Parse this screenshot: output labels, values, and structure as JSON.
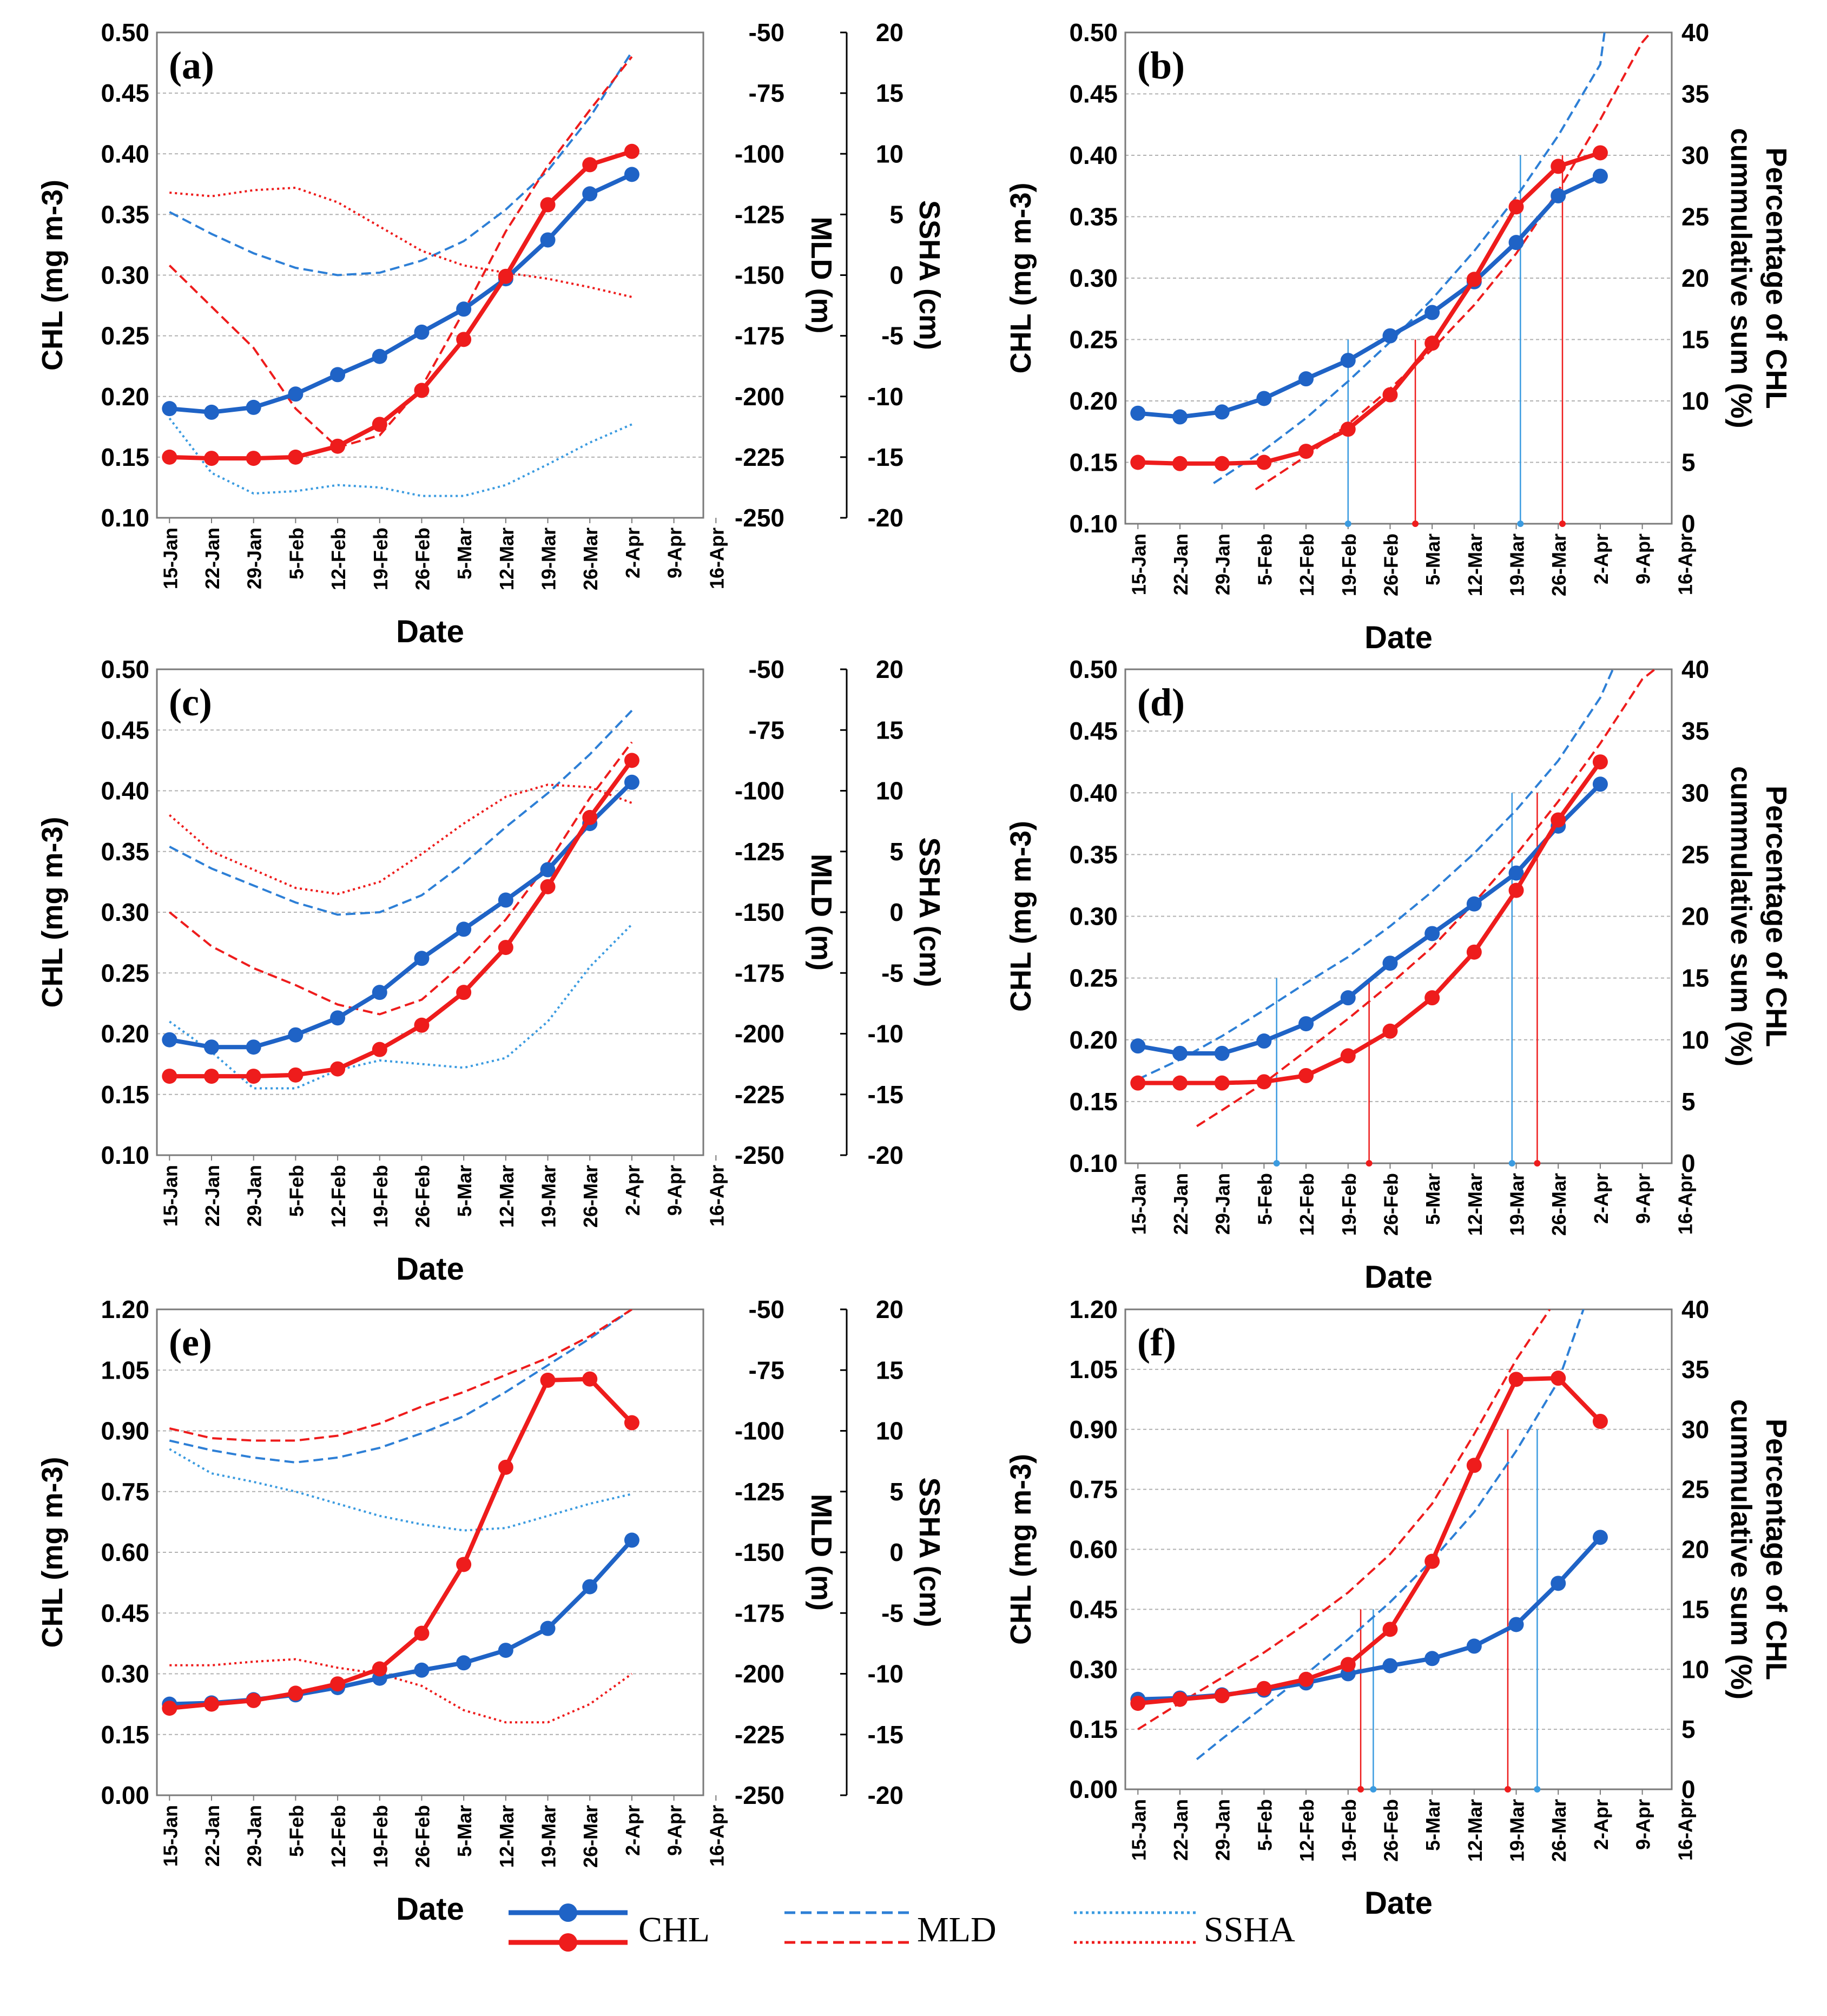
{
  "colors": {
    "blue": "#1f63c6",
    "red": "#ee1c1c",
    "dashblue": "#2d7fd6",
    "dotblue": "#3b9be0",
    "grid": "#b0b0b0"
  },
  "dates": [
    "15-Jan",
    "22-Jan",
    "29-Jan",
    "5-Feb",
    "12-Feb",
    "19-Feb",
    "26-Feb",
    "5-Mar",
    "12-Mar",
    "19-Mar",
    "26-Mar",
    "2-Apr",
    "9-Apr",
    "16-Apr"
  ],
  "xlabel": "Date",
  "legend": {
    "chl": "CHL",
    "mld": "MLD",
    "ssha": "SSHA"
  },
  "chart_data": [
    {
      "panel": "(a)",
      "type": "line",
      "kind": "time",
      "ylabel": "CHL (mg m-3)",
      "ylim": [
        0.1,
        0.5
      ],
      "yticks": [
        0.1,
        0.15,
        0.2,
        0.25,
        0.3,
        0.35,
        0.4,
        0.45,
        0.5
      ],
      "mld_label": "MLD (m)",
      "mld_ticks": [
        -250,
        -225,
        -200,
        -175,
        -150,
        -125,
        -100,
        -75,
        -50
      ],
      "mld_lim": [
        -250,
        -50
      ],
      "ssha_label": "SSHA (cm)",
      "ssha_ticks": [
        -20,
        -15,
        -10,
        -5,
        0,
        5,
        10,
        15,
        20
      ],
      "ssha_lim": [
        -20,
        20
      ],
      "series": [
        {
          "name": "CHL blue",
          "color": "blue",
          "values": [
            0.19,
            0.187,
            0.191,
            0.202,
            0.218,
            0.233,
            0.253,
            0.272,
            0.297,
            0.329,
            0.367,
            0.383
          ]
        },
        {
          "name": "CHL red",
          "color": "red",
          "values": [
            0.15,
            0.149,
            0.149,
            0.15,
            0.159,
            0.177,
            0.205,
            0.247,
            0.299,
            0.358,
            0.391,
            0.402
          ]
        },
        {
          "name": "MLD blue",
          "color": "dashblue",
          "style": "dash",
          "axis": "mld",
          "values": [
            -124,
            -133,
            -141,
            -147,
            -150,
            -149,
            -144,
            -136,
            -123,
            -107,
            -85,
            -58
          ]
        },
        {
          "name": "MLD red",
          "color": "red",
          "style": "dash",
          "axis": "mld",
          "values": [
            -146,
            -163,
            -180,
            -205,
            -221,
            -216,
            -196,
            -165,
            -132,
            -105,
            -82,
            -60
          ]
        },
        {
          "name": "SSHA blue",
          "color": "dotblue",
          "style": "dot",
          "axis": "ssha",
          "values": [
            -11.8,
            -16.3,
            -18.0,
            -17.8,
            -17.3,
            -17.5,
            -18.2,
            -18.2,
            -17.3,
            -15.6,
            -13.8,
            -12.3
          ]
        },
        {
          "name": "SSHA red",
          "color": "red",
          "style": "dot",
          "axis": "ssha",
          "values": [
            6.8,
            6.5,
            7.0,
            7.2,
            6.0,
            4.0,
            2.0,
            0.8,
            0.2,
            -0.3,
            -1.0,
            -1.8
          ]
        }
      ]
    },
    {
      "panel": "(b)",
      "type": "line",
      "kind": "cum",
      "ylabel": "CHL (mg m-3)",
      "ylim": [
        0.1,
        0.5
      ],
      "yticks": [
        0.1,
        0.15,
        0.2,
        0.25,
        0.3,
        0.35,
        0.4,
        0.45,
        0.5
      ],
      "pct_label1": "Percentage of CHL",
      "pct_label2": "cummulative sum (%)",
      "pct_ticks": [
        0,
        5,
        10,
        15,
        20,
        25,
        30,
        35,
        40
      ],
      "pct_lim": [
        0,
        40
      ],
      "series": [
        {
          "name": "CHL blue",
          "color": "blue",
          "values": [
            0.19,
            0.187,
            0.191,
            0.202,
            0.218,
            0.233,
            0.253,
            0.272,
            0.297,
            0.329,
            0.367,
            0.383
          ]
        },
        {
          "name": "CHL red",
          "color": "red",
          "values": [
            0.15,
            0.149,
            0.149,
            0.15,
            0.159,
            0.177,
            0.205,
            0.247,
            0.299,
            0.358,
            0.391,
            0.402
          ]
        },
        {
          "name": "Cum blue",
          "color": "dashblue",
          "style": "dash",
          "axis": "pct",
          "x": [
            1.8,
            3,
            4,
            5,
            6,
            7,
            8,
            9,
            10,
            11,
            11.1
          ],
          "values": [
            3.3,
            6.0,
            8.6,
            11.6,
            14.8,
            18.3,
            22.2,
            26.6,
            31.6,
            37.4,
            40
          ]
        },
        {
          "name": "Cum red",
          "color": "red",
          "style": "dash",
          "axis": "pct",
          "x": [
            2.8,
            4,
            5,
            6,
            7,
            8,
            9,
            10,
            11,
            12,
            12.2
          ],
          "values": [
            2.8,
            5.5,
            8.1,
            11.0,
            14.2,
            17.8,
            22.0,
            27.1,
            32.9,
            39.2,
            40
          ]
        }
      ],
      "markers": [
        {
          "color": "dotblue",
          "x": 5,
          "pct": 15
        },
        {
          "color": "red",
          "x": 6.6,
          "pct": 15
        },
        {
          "color": "dotblue",
          "x": 9.1,
          "pct": 30
        },
        {
          "color": "red",
          "x": 10.1,
          "pct": 30
        }
      ]
    },
    {
      "panel": "(c)",
      "type": "line",
      "kind": "time",
      "ylabel": "CHL (mg m-3)",
      "ylim": [
        0.1,
        0.5
      ],
      "yticks": [
        0.1,
        0.15,
        0.2,
        0.25,
        0.3,
        0.35,
        0.4,
        0.45,
        0.5
      ],
      "mld_label": "MLD (m)",
      "mld_ticks": [
        -250,
        -225,
        -200,
        -175,
        -150,
        -125,
        -100,
        -75,
        -50
      ],
      "mld_lim": [
        -250,
        -50
      ],
      "ssha_label": "SSHA (cm)",
      "ssha_ticks": [
        -20,
        -15,
        -10,
        -5,
        0,
        5,
        10,
        15,
        20
      ],
      "ssha_lim": [
        -20,
        20
      ],
      "series": [
        {
          "name": "CHL blue",
          "color": "blue",
          "values": [
            0.195,
            0.189,
            0.189,
            0.199,
            0.213,
            0.234,
            0.262,
            0.286,
            0.31,
            0.335,
            0.373,
            0.407
          ]
        },
        {
          "name": "CHL red",
          "color": "red",
          "values": [
            0.165,
            0.165,
            0.165,
            0.166,
            0.171,
            0.187,
            0.207,
            0.234,
            0.271,
            0.321,
            0.378,
            0.425
          ]
        },
        {
          "name": "MLD blue",
          "color": "dashblue",
          "style": "dash",
          "axis": "mld",
          "values": [
            -123,
            -132,
            -139,
            -146,
            -151,
            -150,
            -143,
            -130,
            -115,
            -101,
            -85,
            -67
          ]
        },
        {
          "name": "MLD red",
          "color": "red",
          "style": "dash",
          "axis": "mld",
          "values": [
            -150,
            -164,
            -173,
            -180,
            -188,
            -192,
            -186,
            -171,
            -153,
            -130,
            -103,
            -80
          ]
        },
        {
          "name": "SSHA blue",
          "color": "dotblue",
          "style": "dot",
          "axis": "ssha",
          "values": [
            -9.0,
            -11.5,
            -14.5,
            -14.5,
            -13.0,
            -12.2,
            -12.5,
            -12.8,
            -12.0,
            -9.0,
            -4.5,
            -1.0
          ]
        },
        {
          "name": "SSHA red",
          "color": "red",
          "style": "dot",
          "axis": "ssha",
          "values": [
            8.0,
            5.0,
            3.5,
            2.0,
            1.5,
            2.5,
            4.8,
            7.3,
            9.5,
            10.5,
            10.3,
            9.0
          ]
        }
      ]
    },
    {
      "panel": "(d)",
      "type": "line",
      "kind": "cum",
      "ylabel": "CHL (mg m-3)",
      "ylim": [
        0.1,
        0.5
      ],
      "yticks": [
        0.1,
        0.15,
        0.2,
        0.25,
        0.3,
        0.35,
        0.4,
        0.45,
        0.5
      ],
      "pct_label1": "Percentage of CHL",
      "pct_label2": "cummulative sum (%)",
      "pct_ticks": [
        0,
        5,
        10,
        15,
        20,
        25,
        30,
        35,
        40
      ],
      "pct_lim": [
        0,
        40
      ],
      "series": [
        {
          "name": "CHL blue",
          "color": "blue",
          "values": [
            0.195,
            0.189,
            0.189,
            0.199,
            0.213,
            0.234,
            0.262,
            0.286,
            0.31,
            0.335,
            0.373,
            0.407
          ]
        },
        {
          "name": "CHL red",
          "color": "red",
          "values": [
            0.165,
            0.165,
            0.165,
            0.166,
            0.171,
            0.187,
            0.207,
            0.234,
            0.271,
            0.321,
            0.378,
            0.425
          ]
        },
        {
          "name": "Cum blue",
          "color": "dashblue",
          "style": "dash",
          "axis": "pct",
          "x": [
            0,
            1,
            2,
            3,
            4,
            5,
            6,
            7,
            8,
            9,
            10,
            11,
            11.3
          ],
          "values": [
            6.8,
            8.4,
            10.3,
            12.4,
            14.6,
            16.7,
            19.2,
            22.0,
            25.1,
            28.6,
            32.6,
            37.7,
            40
          ]
        },
        {
          "name": "Cum red",
          "color": "red",
          "style": "dash",
          "axis": "pct",
          "x": [
            1.4,
            2,
            3,
            4,
            5,
            6,
            7,
            8,
            9,
            10,
            11,
            12,
            12.3
          ],
          "values": [
            3.0,
            4.3,
            6.5,
            9.1,
            11.7,
            14.5,
            17.5,
            21.1,
            25.0,
            29.3,
            34.0,
            39.2,
            40
          ]
        }
      ],
      "markers": [
        {
          "color": "dotblue",
          "x": 3.3,
          "pct": 15
        },
        {
          "color": "red",
          "x": 5.5,
          "pct": 15
        },
        {
          "color": "dotblue",
          "x": 8.9,
          "pct": 30
        },
        {
          "color": "red",
          "x": 9.5,
          "pct": 30
        }
      ]
    },
    {
      "panel": "(e)",
      "type": "line",
      "kind": "time",
      "ylabel": "CHL (mg m-3)",
      "ylim": [
        0.0,
        1.2
      ],
      "yticks": [
        0.0,
        0.15,
        0.3,
        0.45,
        0.6,
        0.75,
        0.9,
        1.05,
        1.2
      ],
      "mld_label": "MLD (m)",
      "mld_ticks": [
        -250,
        -225,
        -200,
        -175,
        -150,
        -125,
        -100,
        -75,
        -50
      ],
      "mld_lim": [
        -250,
        -50
      ],
      "ssha_label": "SSHA (cm)",
      "ssha_ticks": [
        -20,
        -15,
        -10,
        -5,
        0,
        5,
        10,
        15,
        20
      ],
      "ssha_lim": [
        -20,
        20
      ],
      "series": [
        {
          "name": "CHL blue",
          "color": "blue",
          "values": [
            0.225,
            0.228,
            0.236,
            0.248,
            0.266,
            0.289,
            0.309,
            0.327,
            0.358,
            0.412,
            0.515,
            0.63
          ]
        },
        {
          "name": "CHL red",
          "color": "red",
          "values": [
            0.215,
            0.225,
            0.234,
            0.252,
            0.275,
            0.312,
            0.4,
            0.57,
            0.81,
            1.025,
            1.028,
            0.92
          ]
        },
        {
          "name": "MLD blue",
          "color": "dashblue",
          "style": "dash",
          "axis": "mld",
          "values": [
            -104,
            -108,
            -111,
            -113,
            -111,
            -107,
            -101,
            -94,
            -84,
            -73,
            -62,
            -50
          ]
        },
        {
          "name": "MLD red",
          "color": "red",
          "style": "dash",
          "axis": "mld",
          "values": [
            -99,
            -103,
            -104,
            -104,
            -102,
            -97,
            -90,
            -84,
            -77,
            -70,
            -61,
            -50
          ]
        },
        {
          "name": "SSHA blue",
          "color": "dotblue",
          "style": "dot",
          "axis": "ssha",
          "values": [
            8.5,
            6.5,
            5.8,
            5.0,
            4.0,
            3.0,
            2.3,
            1.8,
            2.0,
            3.0,
            4.0,
            4.8
          ]
        },
        {
          "name": "SSHA red",
          "color": "red",
          "style": "dot",
          "axis": "ssha",
          "values": [
            -9.3,
            -9.3,
            -9.0,
            -8.8,
            -9.5,
            -10.0,
            -11.0,
            -13.0,
            -14.0,
            -14.0,
            -12.5,
            -10.0
          ]
        }
      ]
    },
    {
      "panel": "(f)",
      "type": "line",
      "kind": "cum",
      "ylabel": "CHL (mg m-3)",
      "ylim": [
        0.0,
        1.2
      ],
      "yticks": [
        0.0,
        0.15,
        0.3,
        0.45,
        0.6,
        0.75,
        0.9,
        1.05,
        1.2
      ],
      "pct_label1": "Percentage of CHL",
      "pct_label2": "cummulative sum (%)",
      "pct_ticks": [
        0,
        5,
        10,
        15,
        20,
        25,
        30,
        35,
        40
      ],
      "pct_lim": [
        0,
        40
      ],
      "series": [
        {
          "name": "CHL blue",
          "color": "blue",
          "values": [
            0.225,
            0.228,
            0.236,
            0.248,
            0.266,
            0.289,
            0.309,
            0.327,
            0.358,
            0.412,
            0.515,
            0.63
          ]
        },
        {
          "name": "CHL red",
          "color": "red",
          "values": [
            0.215,
            0.225,
            0.234,
            0.252,
            0.275,
            0.312,
            0.4,
            0.57,
            0.81,
            1.025,
            1.028,
            0.92
          ]
        },
        {
          "name": "Cum blue",
          "color": "dashblue",
          "style": "dash",
          "axis": "pct",
          "x": [
            1.4,
            2,
            3,
            4,
            5,
            6,
            7,
            8,
            9,
            10,
            10.6
          ],
          "values": [
            2.5,
            4.2,
            6.9,
            9.6,
            12.5,
            15.6,
            19.1,
            23.1,
            28.2,
            34.0,
            40
          ]
        },
        {
          "name": "Cum red",
          "color": "red",
          "style": "dash",
          "axis": "pct",
          "x": [
            0,
            1,
            2,
            3,
            4,
            5,
            6,
            7,
            8,
            9,
            9.8
          ],
          "values": [
            5.0,
            7.2,
            9.3,
            11.4,
            13.8,
            16.4,
            19.6,
            23.8,
            29.6,
            35.8,
            40
          ]
        }
      ],
      "markers": [
        {
          "color": "red",
          "x": 5.3,
          "pct": 15
        },
        {
          "color": "dotblue",
          "x": 5.6,
          "pct": 15
        },
        {
          "color": "red",
          "x": 8.8,
          "pct": 30
        },
        {
          "color": "dotblue",
          "x": 9.5,
          "pct": 30
        }
      ]
    }
  ]
}
